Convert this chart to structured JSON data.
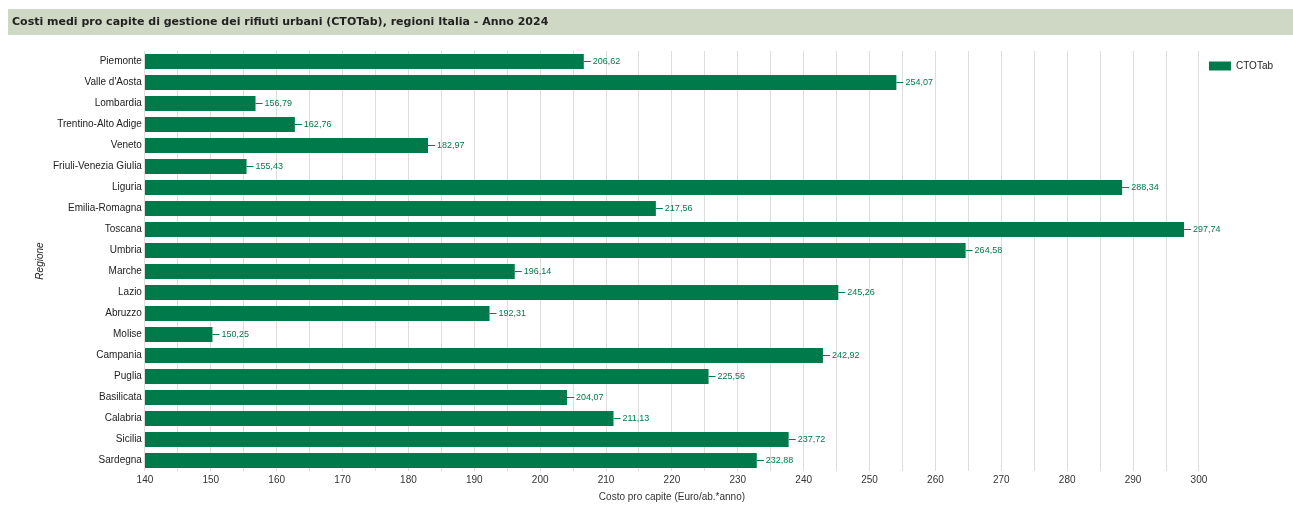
{
  "chart_data": {
    "type": "bar",
    "orientation": "horizontal",
    "title": "Costi medi pro capite di gestione dei rifiuti urbani (CTOTab), regioni Italia - Anno 2024",
    "xlabel": "Costo pro capite (Euro/ab.*anno)",
    "ylabel": "Regione",
    "categories": [
      "Piemonte",
      "Valle d'Aosta",
      "Lombardia",
      "Trentino-Alto Adige",
      "Veneto",
      "Friuli-Venezia Giulia",
      "Liguria",
      "Emilia-Romagna",
      "Toscana",
      "Umbria",
      "Marche",
      "Lazio",
      "Abruzzo",
      "Molise",
      "Campania",
      "Puglia",
      "Basilicata",
      "Calabria",
      "Sicilia",
      "Sardegna"
    ],
    "series": [
      {
        "name": "CTOTab",
        "color": "#007a4a",
        "values": [
          206.62,
          254.07,
          156.79,
          162.76,
          182.97,
          155.43,
          288.34,
          217.56,
          297.74,
          264.58,
          196.14,
          245.26,
          192.31,
          150.25,
          242.92,
          225.56,
          204.07,
          211.13,
          237.72,
          232.88
        ],
        "value_labels": [
          "206,62",
          "254,07",
          "156,79",
          "162,76",
          "182,97",
          "155,43",
          "288,34",
          "217,56",
          "297,74",
          "264,58",
          "196,14",
          "245,26",
          "192,31",
          "150,25",
          "242,92",
          "225,56",
          "204,07",
          "211,13",
          "237,72",
          "232,88"
        ]
      }
    ],
    "xlim": [
      140,
      300
    ],
    "xticks": [
      140,
      {
        "value": 145,
        "label": null
      },
      150,
      {
        "value": 155,
        "label": null
      },
      160,
      {
        "value": 165,
        "label": null
      },
      170,
      {
        "value": 175,
        "label": null
      },
      180,
      {
        "value": 185,
        "label": null
      },
      190,
      {
        "value": 195,
        "label": null
      },
      200,
      {
        "value": 205,
        "label": null
      },
      210,
      {
        "value": 215,
        "label": null
      },
      220,
      {
        "value": 225,
        "label": null
      },
      230,
      {
        "value": 235,
        "label": null
      },
      240,
      {
        "value": 245,
        "label": null
      },
      250,
      {
        "value": 255,
        "label": null
      },
      260,
      {
        "value": 265,
        "label": null
      },
      270,
      {
        "value": 275,
        "label": null
      },
      280,
      {
        "value": 285,
        "label": null
      },
      290,
      {
        "value": 295,
        "label": null
      },
      300
    ],
    "grid": "x",
    "legend": "top right"
  }
}
